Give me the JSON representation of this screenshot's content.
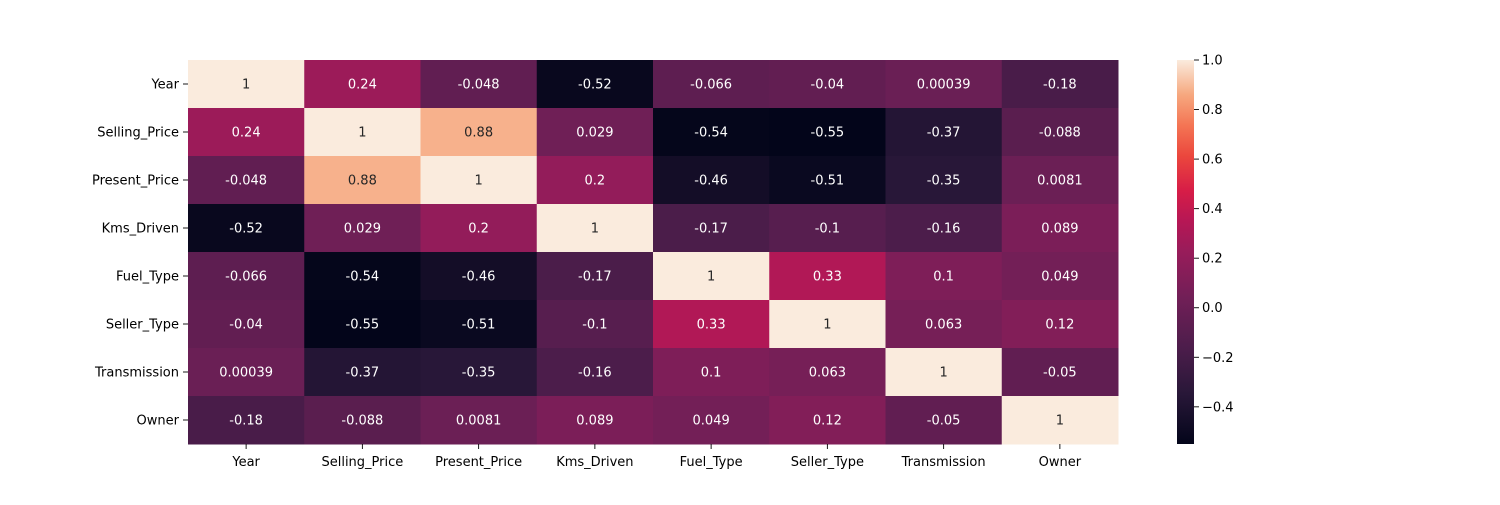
{
  "chart_data": {
    "type": "heatmap",
    "title": "",
    "xlabel": "",
    "ylabel": "",
    "x_labels": [
      "Year",
      "Selling_Price",
      "Present_Price",
      "Kms_Driven",
      "Fuel_Type",
      "Seller_Type",
      "Transmission",
      "Owner"
    ],
    "y_labels": [
      "Year",
      "Selling_Price",
      "Present_Price",
      "Kms_Driven",
      "Fuel_Type",
      "Seller_Type",
      "Transmission",
      "Owner"
    ],
    "values": [
      [
        1,
        0.24,
        -0.048,
        -0.52,
        -0.066,
        -0.04,
        0.00039,
        -0.18
      ],
      [
        0.24,
        1,
        0.88,
        0.029,
        -0.54,
        -0.55,
        -0.37,
        -0.088
      ],
      [
        -0.048,
        0.88,
        1,
        0.2,
        -0.46,
        -0.51,
        -0.35,
        0.0081
      ],
      [
        -0.52,
        0.029,
        0.2,
        1,
        -0.17,
        -0.1,
        -0.16,
        0.089
      ],
      [
        -0.066,
        -0.54,
        -0.46,
        -0.17,
        1,
        0.33,
        0.1,
        0.049
      ],
      [
        -0.04,
        -0.55,
        -0.51,
        -0.1,
        0.33,
        1,
        0.063,
        0.12
      ],
      [
        0.00039,
        -0.37,
        -0.35,
        -0.16,
        0.1,
        0.063,
        1,
        -0.05
      ],
      [
        -0.18,
        -0.088,
        0.0081,
        0.089,
        0.049,
        0.12,
        -0.05,
        1
      ]
    ],
    "annotations": [
      [
        "1",
        "0.24",
        "-0.048",
        "-0.52",
        "-0.066",
        "-0.04",
        "0.00039",
        "-0.18"
      ],
      [
        "0.24",
        "1",
        "0.88",
        "0.029",
        "-0.54",
        "-0.55",
        "-0.37",
        "-0.088"
      ],
      [
        "-0.048",
        "0.88",
        "1",
        "0.2",
        "-0.46",
        "-0.51",
        "-0.35",
        "0.0081"
      ],
      [
        "-0.52",
        "0.029",
        "0.2",
        "1",
        "-0.17",
        "-0.1",
        "-0.16",
        "0.089"
      ],
      [
        "-0.066",
        "-0.54",
        "-0.46",
        "-0.17",
        "1",
        "0.33",
        "0.1",
        "0.049"
      ],
      [
        "-0.04",
        "-0.55",
        "-0.51",
        "-0.1",
        "0.33",
        "1",
        "0.063",
        "0.12"
      ],
      [
        "0.00039",
        "-0.37",
        "-0.35",
        "-0.16",
        "0.1",
        "0.063",
        "1",
        "-0.05"
      ],
      [
        "-0.18",
        "-0.088",
        "0.0081",
        "0.089",
        "0.049",
        "0.12",
        "-0.05",
        "1"
      ]
    ],
    "colormap": "rocket",
    "vmin": -0.55,
    "vmax": 1.0,
    "colorbar": {
      "ticks": [
        1.0,
        0.8,
        0.6,
        0.4,
        0.2,
        0.0,
        -0.2,
        -0.4
      ],
      "tick_labels": [
        "1.0",
        "0.8",
        "0.6",
        "0.4",
        "0.2",
        "0.0",
        "−0.2",
        "−0.4"
      ]
    },
    "grid": false,
    "legend": "colorbar-right"
  }
}
